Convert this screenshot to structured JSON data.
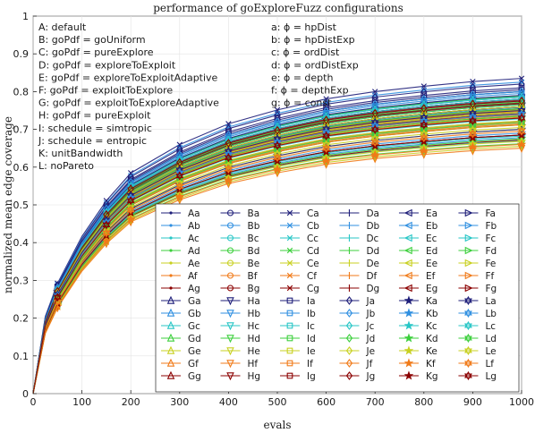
{
  "chart_data": {
    "type": "line",
    "title": "performance of goExploreFuzz configurations",
    "xlabel": "evals",
    "ylabel": "normalized mean edge coverage",
    "xlim": [
      0,
      1000
    ],
    "ylim": [
      0,
      1
    ],
    "xticks": [
      0,
      100,
      200,
      300,
      400,
      500,
      600,
      700,
      800,
      900,
      1000
    ],
    "yticks": [
      0,
      0.1,
      0.2,
      0.3,
      0.4,
      0.5,
      0.6,
      0.7,
      0.8,
      0.9,
      1
    ],
    "grid": true,
    "legend_location": "bottom-right",
    "annotations_left": [
      "A: default",
      "B: goPdf = goUniform",
      "C: goPdf = pureExplore",
      "D: goPdf = exploreToExploit",
      "E: goPdf = exploreToExploitAdaptive",
      "F: goPdf = exploitToExplore",
      "G: goPdf = exploitToExploreAdaptive",
      "H: goPdf = pureExploit",
      "I: schedule = simtropic",
      "J: schedule = entropic",
      "K: unitBandwidth",
      "L: noPareto"
    ],
    "annotations_right": [
      "a: ϕ = hpDist",
      "b: ϕ = hpDistExp",
      "c: ϕ = ordDist",
      "d: ϕ = ordDistExp",
      "e: ϕ = depth",
      "f: ϕ = depthExp",
      "g: ϕ = const"
    ],
    "group_colors": {
      "a": "#1f1f7a",
      "b": "#2f8fe0",
      "c": "#27c6c6",
      "d": "#3ccf3c",
      "e": "#c8d020",
      "f": "#f07a18",
      "g": "#8b0000"
    },
    "group_markers": {
      "A": "point",
      "B": "circle",
      "C": "x",
      "D": "plus",
      "E": "triangle-left",
      "F": "triangle-right",
      "G": "triangle-up",
      "H": "triangle-down",
      "I": "square",
      "J": "diamond",
      "K": "star",
      "L": "hexagram"
    },
    "series_names": [
      "Aa",
      "Ab",
      "Ac",
      "Ad",
      "Ae",
      "Af",
      "Ag",
      "Ba",
      "Bb",
      "Bc",
      "Bd",
      "Be",
      "Bf",
      "Bg",
      "Ca",
      "Cb",
      "Cc",
      "Cd",
      "Ce",
      "Cf",
      "Cg",
      "Da",
      "Db",
      "Dc",
      "Dd",
      "De",
      "Df",
      "Dg",
      "Ea",
      "Eb",
      "Ec",
      "Ed",
      "Ee",
      "Ef",
      "Eg",
      "Fa",
      "Fb",
      "Fc",
      "Fd",
      "Fe",
      "Ff",
      "Fg",
      "Ga",
      "Gb",
      "Gc",
      "Gd",
      "Ge",
      "Gf",
      "Gg",
      "Ha",
      "Hb",
      "Hc",
      "Hd",
      "He",
      "Hf",
      "Hg",
      "Ia",
      "Ib",
      "Ic",
      "Id",
      "Ie",
      "If",
      "Ig",
      "Ja",
      "Jb",
      "Jc",
      "Jd",
      "Je",
      "Jf",
      "Jg",
      "Ka",
      "Kb",
      "Kc",
      "Kd",
      "Ke",
      "Kf",
      "Kg",
      "La",
      "Lb",
      "Lc",
      "Ld",
      "Le",
      "Lf",
      "Lg"
    ],
    "x": [
      0,
      25,
      50,
      100,
      150,
      200,
      300,
      400,
      500,
      600,
      700,
      800,
      900,
      1000
    ],
    "curve_shape": [
      0,
      0.245,
      0.35,
      0.499,
      0.612,
      0.7,
      0.79,
      0.856,
      0.9,
      0.935,
      0.958,
      0.975,
      0.99,
      1.0
    ],
    "final_values": {
      "A": [
        0.755,
        0.735,
        0.722,
        0.712,
        0.7,
        0.685,
        0.745
      ],
      "B": [
        0.805,
        0.79,
        0.77,
        0.76,
        0.748,
        0.738,
        0.777
      ],
      "C": [
        0.835,
        0.825,
        0.8,
        0.788,
        0.775,
        0.76,
        0.78
      ],
      "D": [
        0.79,
        0.775,
        0.76,
        0.745,
        0.735,
        0.72,
        0.768
      ],
      "E": [
        0.78,
        0.765,
        0.752,
        0.74,
        0.73,
        0.715,
        0.752
      ],
      "F": [
        0.77,
        0.758,
        0.745,
        0.735,
        0.722,
        0.712,
        0.742
      ],
      "G": [
        0.8,
        0.785,
        0.77,
        0.755,
        0.745,
        0.732,
        0.76
      ],
      "H": [
        0.685,
        0.678,
        0.67,
        0.662,
        0.655,
        0.65,
        0.672
      ],
      "I": [
        0.81,
        0.795,
        0.78,
        0.765,
        0.752,
        0.74,
        0.77
      ],
      "J": [
        0.82,
        0.8,
        0.785,
        0.772,
        0.76,
        0.748,
        0.775
      ],
      "K": [
        0.7,
        0.69,
        0.682,
        0.675,
        0.668,
        0.66,
        0.685
      ],
      "L": [
        0.75,
        0.74,
        0.728,
        0.718,
        0.705,
        0.695,
        0.73
      ]
    }
  }
}
